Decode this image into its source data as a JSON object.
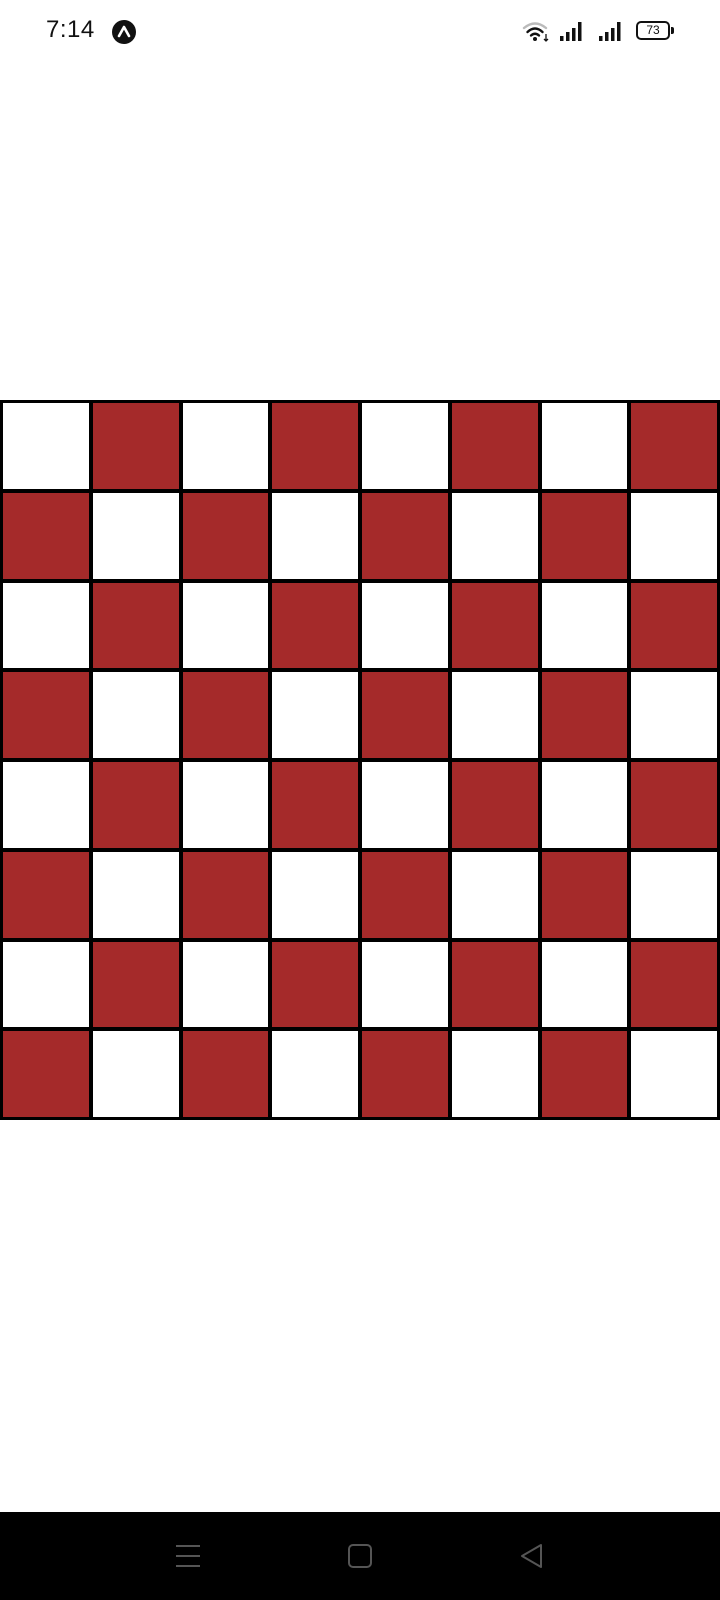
{
  "status_bar": {
    "time": "7:14",
    "battery": "73",
    "icons": [
      "app-badge-icon",
      "wifi-icon",
      "signal-icon",
      "signal-icon",
      "battery-icon"
    ]
  },
  "board": {
    "rows": 8,
    "cols": 8,
    "top_left_square": "light",
    "colors": {
      "dark": "#a52a2a",
      "light": "#ffffff",
      "grid": "#000000"
    }
  },
  "nav_bar": {
    "icons": [
      "menu-icon",
      "home-icon",
      "back-icon"
    ]
  }
}
